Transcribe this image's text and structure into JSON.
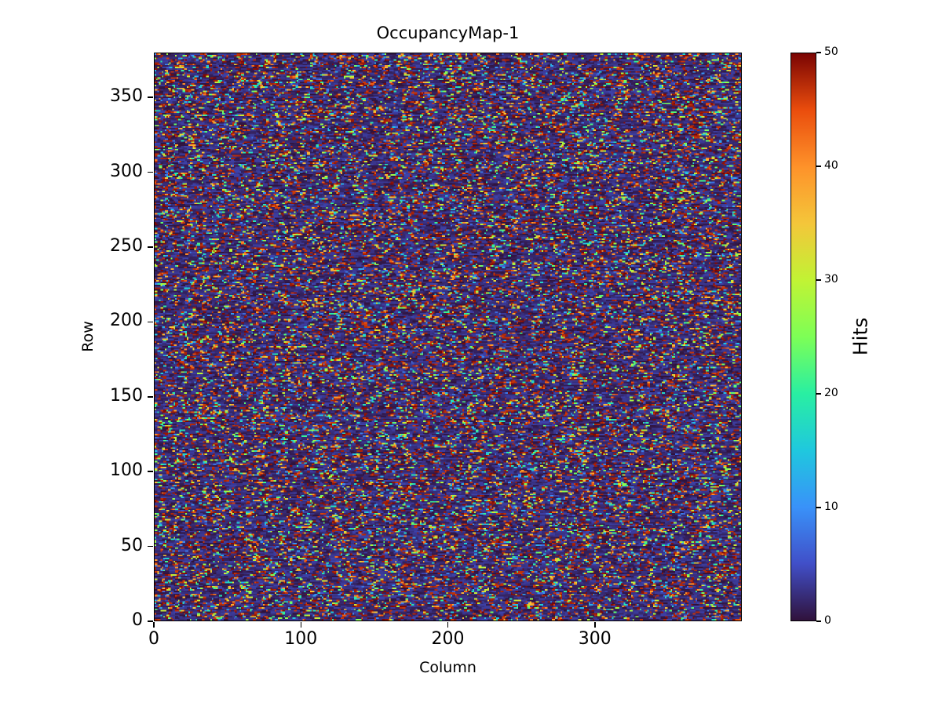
{
  "figure": {
    "title": "OccupancyMap-1",
    "xlabel": "Column",
    "ylabel": "Row",
    "colorbar_label": "Hits"
  },
  "chart_data": {
    "type": "heatmap",
    "title": "OccupancyMap-1",
    "xlabel": "Column",
    "ylabel": "Row",
    "colorbar_label": "Hits",
    "xlim": [
      0,
      400
    ],
    "ylim": [
      0,
      380
    ],
    "xticks": [
      0,
      100,
      200,
      300
    ],
    "yticks": [
      0,
      50,
      100,
      150,
      200,
      250,
      300,
      350
    ],
    "colorbar_ticks": [
      0,
      10,
      20,
      30,
      40,
      50
    ],
    "vmin": 0,
    "vmax": 50,
    "grid_cols": 400,
    "grid_rows": 380,
    "colormap": "turbo",
    "colormap_stops": [
      [
        0.0,
        "#30123b"
      ],
      [
        0.1,
        "#414fc8"
      ],
      [
        0.2,
        "#3992f9"
      ],
      [
        0.3,
        "#1fc8de"
      ],
      [
        0.4,
        "#29efa2"
      ],
      [
        0.5,
        "#7dff56"
      ],
      [
        0.6,
        "#c1f334"
      ],
      [
        0.7,
        "#f4c63a"
      ],
      [
        0.8,
        "#fe922a"
      ],
      [
        0.9,
        "#ea4d0d"
      ],
      [
        1.0,
        "#7a0403"
      ]
    ],
    "pattern": {
      "description": "dense random pixel-occupancy noise: dark low-value background with frequent near-maximum dark-red hits and scattered mid-value blue/cyan/green/yellow/orange dashes",
      "seed": 42,
      "low_fraction": 0.55,
      "low_max": 4,
      "high_fraction": 0.22,
      "high_min": 46,
      "mid_fraction": 0.23,
      "mid_min": 5,
      "mid_max": 46
    }
  }
}
